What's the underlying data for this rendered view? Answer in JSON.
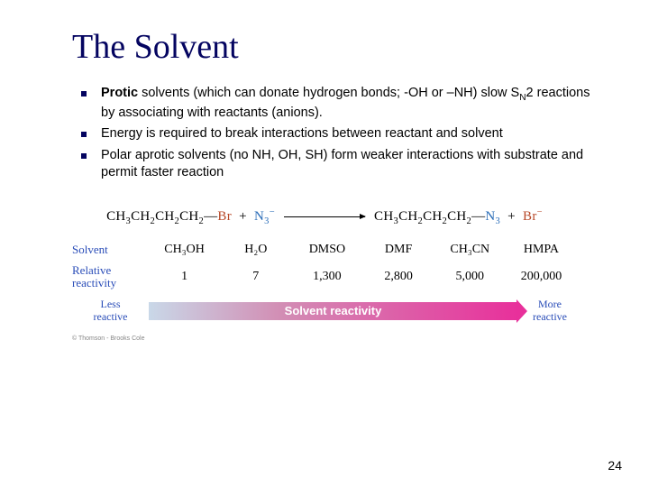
{
  "title": "The Solvent",
  "bullets": [
    {
      "html": "<span class='bold'>Protic</span> solvents (which can donate hydrogen bonds; -OH or –NH) slow S<sub>N</sub>2 reactions by associating with reactants (anions)."
    },
    {
      "html": "Energy is required to break interactions between reactant and solvent"
    },
    {
      "html": "Polar aprotic solvents (no NH, OH, SH) form weaker interactions with substrate and permit faster reaction"
    }
  ],
  "equation": {
    "reactant1_a": "CH",
    "reactant1_b": "CH",
    "reactant1_c": "CH",
    "reactant1_d": "CH",
    "br": "Br",
    "plus": "+",
    "n": "N",
    "minus": "−",
    "product_n": "N",
    "product_br": "Br"
  },
  "table": {
    "row_labels": [
      "Solvent",
      "Relative reactivity"
    ],
    "solvents": [
      "CH₃OH",
      "H₂O",
      "DMSO",
      "DMF",
      "CH₃CN",
      "HMPA"
    ],
    "reactivity": [
      "1",
      "7",
      "1,300",
      "2,800",
      "5,000",
      "200,000"
    ]
  },
  "gradient": {
    "left_label_1": "Less",
    "left_label_2": "reactive",
    "center_label": "Solvent reactivity",
    "right_label_1": "More",
    "right_label_2": "reactive",
    "colors": {
      "start": "#c9d8e8",
      "mid": "#d28fb5",
      "end": "#e8309b"
    }
  },
  "copyright": "© Thomson - Brooks Cole",
  "page_number": "24"
}
